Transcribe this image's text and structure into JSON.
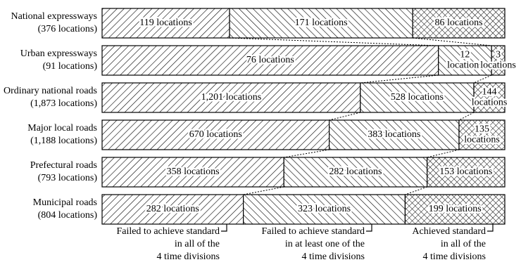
{
  "chart_data": {
    "type": "bar",
    "orientation": "horizontal",
    "stacked": true,
    "categories": [
      [
        "National expressways",
        "(376 locations)"
      ],
      [
        "Urban expressways",
        "(91 locations)"
      ],
      [
        "Ordinary national roads",
        "(1,873 locations)"
      ],
      [
        "Major local roads",
        "(1,188 locations)"
      ],
      [
        "Prefectural roads",
        "(793 locations)"
      ],
      [
        "Municipal roads",
        "(804 locations)"
      ]
    ],
    "series": [
      {
        "name": [
          "Failed to achieve standard",
          "in all of the",
          "4 time divisions"
        ],
        "color": "#000000",
        "hatch": "forward",
        "values": [
          119,
          76,
          1201,
          670,
          358,
          282
        ],
        "value_labels": [
          [
            "119 locations"
          ],
          [
            "76 locations"
          ],
          [
            "1,201 locations"
          ],
          [
            "670 locations"
          ],
          [
            "358 locations"
          ],
          [
            "282 locations"
          ]
        ]
      },
      {
        "name": [
          "Failed to achieve standard",
          "in at least one of the",
          "4 time divisions"
        ],
        "color": "#000000",
        "hatch": "backward",
        "values": [
          171,
          12,
          528,
          383,
          282,
          323
        ],
        "value_labels": [
          [
            "171 locations"
          ],
          [
            "12",
            "locations"
          ],
          [
            "528 locations"
          ],
          [
            "383 locations"
          ],
          [
            "282 locations"
          ],
          [
            "323 locations"
          ]
        ]
      },
      {
        "name": [
          "Achieved standard",
          "in all of the",
          "4 time divisions"
        ],
        "color": "#000000",
        "hatch": "cross",
        "values": [
          86,
          3,
          144,
          135,
          153,
          199
        ],
        "value_labels": [
          [
            "86 locations"
          ],
          [
            "3",
            "locations"
          ],
          [
            "144",
            "locations"
          ],
          [
            "135",
            "locations"
          ],
          [
            "153 locations"
          ],
          [
            "199 locations"
          ]
        ]
      }
    ]
  }
}
